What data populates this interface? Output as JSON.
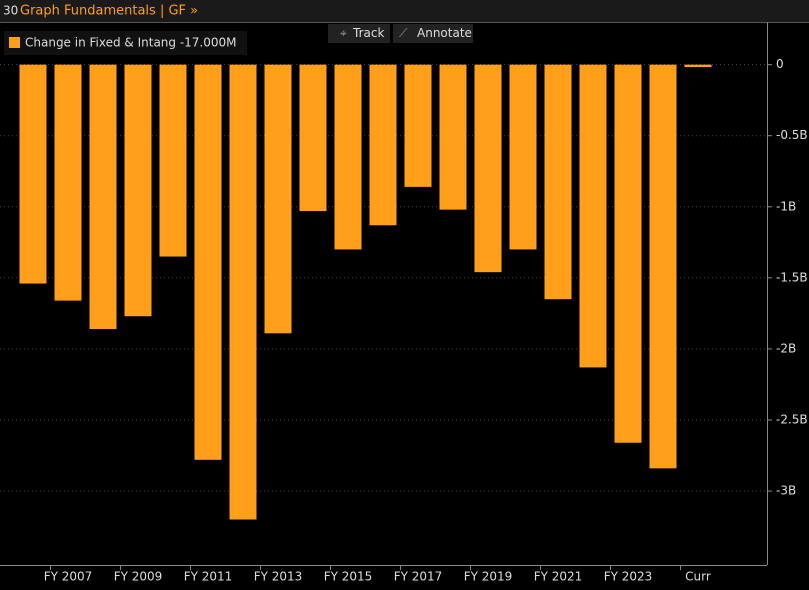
{
  "header": {
    "badge": "30",
    "title": "Graph Fundamentals | GF »"
  },
  "toolbar": [
    "Track",
    "Annotate"
  ],
  "chart_data": {
    "type": "bar",
    "categories": [
      null,
      "FY 2007",
      null,
      "FY 2009",
      null,
      "FY 2011",
      null,
      "FY 2013",
      null,
      "FY 2015",
      null,
      "FY 2017",
      null,
      "FY 2019",
      null,
      "FY 2021",
      null,
      "FY 2023",
      null,
      "Curr"
    ],
    "series": [
      {
        "name": "Change in Fixed & Intang -17.000M",
        "color": "#ff9f1a",
        "values": [
          -1.54,
          -1.66,
          -1.86,
          -1.77,
          -1.35,
          -2.78,
          -3.2,
          -1.89,
          -1.03,
          -1.3,
          -1.13,
          -0.86,
          -1.02,
          -1.46,
          -1.3,
          -1.65,
          -2.13,
          -2.66,
          -2.84,
          -0.017
        ]
      }
    ],
    "ylim": [
      -3.52,
      0.3
    ],
    "yticks": [
      0,
      {
        "value": -0.5,
        "label": "-0.5B"
      },
      {
        "value": -1,
        "label": "-1B"
      },
      {
        "value": -1.5,
        "label": "-1.5B"
      },
      {
        "value": -2,
        "label": "-2B"
      },
      {
        "value": -2.5,
        "label": "-2.5B"
      },
      {
        "value": -3,
        "label": "-3B"
      }
    ],
    "grid": true
  }
}
